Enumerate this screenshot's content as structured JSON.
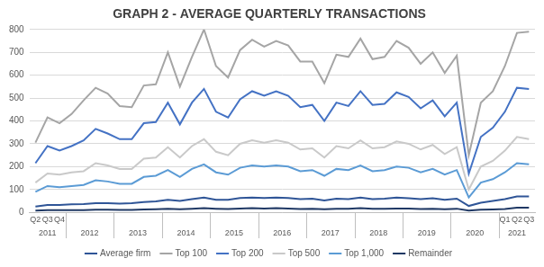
{
  "chart_data": {
    "type": "line",
    "title": "GRAPH 2 - AVERAGE QUARTERLY TRANSACTIONS",
    "categories": [
      "Q2",
      "Q3",
      "Q4",
      null,
      null,
      null,
      null,
      null,
      null,
      null,
      null,
      null,
      null,
      null,
      null,
      null,
      null,
      null,
      null,
      null,
      null,
      null,
      null,
      null,
      null,
      null,
      null,
      null,
      null,
      null,
      null,
      null,
      null,
      null,
      null,
      null,
      null,
      null,
      null,
      "Q1",
      "Q2",
      "Q3"
    ],
    "years": [
      "2011",
      "2011",
      "2011",
      "2012",
      "2012",
      "2012",
      "2012",
      "2013",
      "2013",
      "2013",
      "2013",
      "2014",
      "2014",
      "2014",
      "2014",
      "2015",
      "2015",
      "2015",
      "2015",
      "2016",
      "2016",
      "2016",
      "2016",
      "2017",
      "2017",
      "2017",
      "2017",
      "2018",
      "2018",
      "2018",
      "2018",
      "2019",
      "2019",
      "2019",
      "2019",
      "2020",
      "2020",
      "2020",
      "2020",
      "2021",
      "2021",
      "2021"
    ],
    "series": [
      {
        "name": "Average firm",
        "color": "#2F5597",
        "values": [
          25,
          32,
          32,
          35,
          36,
          40,
          40,
          38,
          40,
          45,
          48,
          55,
          50,
          58,
          65,
          55,
          55,
          63,
          65,
          63,
          65,
          63,
          58,
          60,
          52,
          60,
          58,
          65,
          58,
          60,
          65,
          62,
          58,
          62,
          55,
          60,
          28,
          42,
          50,
          58,
          70,
          70
        ]
      },
      {
        "name": "Top 100",
        "color": "#A5A5A5",
        "values": [
          305,
          415,
          390,
          430,
          490,
          545,
          520,
          465,
          460,
          555,
          560,
          700,
          550,
          680,
          800,
          640,
          590,
          710,
          755,
          725,
          750,
          730,
          660,
          660,
          565,
          690,
          680,
          760,
          670,
          680,
          750,
          720,
          650,
          700,
          610,
          685,
          250,
          480,
          530,
          640,
          785,
          790
        ]
      },
      {
        "name": "Top 200",
        "color": "#4472C4",
        "values": [
          215,
          290,
          270,
          290,
          315,
          365,
          345,
          320,
          320,
          390,
          395,
          480,
          385,
          480,
          540,
          440,
          415,
          495,
          530,
          510,
          530,
          510,
          460,
          470,
          400,
          480,
          465,
          530,
          470,
          475,
          525,
          505,
          455,
          490,
          420,
          480,
          170,
          330,
          370,
          440,
          545,
          540
        ]
      },
      {
        "name": "Top 500",
        "color": "#C9C9C9",
        "values": [
          130,
          170,
          165,
          175,
          180,
          215,
          205,
          190,
          190,
          235,
          240,
          285,
          240,
          290,
          320,
          265,
          250,
          300,
          315,
          305,
          315,
          305,
          275,
          280,
          240,
          290,
          280,
          315,
          280,
          285,
          310,
          300,
          275,
          295,
          255,
          285,
          100,
          200,
          225,
          270,
          330,
          320
        ]
      },
      {
        "name": "Top 1,000",
        "color": "#5B9BD5",
        "values": [
          90,
          115,
          110,
          115,
          120,
          140,
          135,
          125,
          125,
          155,
          160,
          185,
          155,
          190,
          210,
          175,
          165,
          195,
          205,
          200,
          205,
          200,
          180,
          185,
          160,
          190,
          185,
          205,
          180,
          185,
          200,
          195,
          175,
          190,
          165,
          185,
          65,
          130,
          145,
          175,
          215,
          210
        ]
      },
      {
        "name": "Remainder",
        "color": "#1F3864",
        "values": [
          8,
          10,
          10,
          10,
          10,
          12,
          12,
          11,
          11,
          13,
          14,
          16,
          14,
          16,
          18,
          16,
          15,
          17,
          18,
          17,
          18,
          17,
          15,
          16,
          14,
          16,
          16,
          18,
          16,
          16,
          17,
          17,
          15,
          16,
          14,
          16,
          8,
          12,
          13,
          15,
          20,
          20
        ]
      }
    ],
    "ylim": [
      0,
      800
    ],
    "yticks": [
      0,
      100,
      200,
      300,
      400,
      500,
      600,
      700,
      800
    ],
    "grid": true,
    "legend": "bottom"
  }
}
